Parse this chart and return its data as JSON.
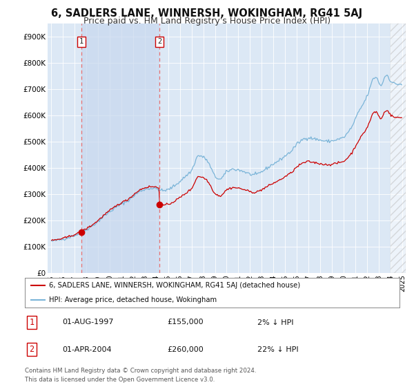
{
  "title": "6, SADLERS LANE, WINNERSH, WOKINGHAM, RG41 5AJ",
  "subtitle": "Price paid vs. HM Land Registry's House Price Index (HPI)",
  "background_color": "#ffffff",
  "plot_bg_color": "#dce8f5",
  "shade_color": "#c8d8ee",
  "legend_entries": [
    "6, SADLERS LANE, WINNERSH, WOKINGHAM, RG41 5AJ (detached house)",
    "HPI: Average price, detached house, Wokingham"
  ],
  "sale_year1": 1997.583,
  "sale_year2": 2004.25,
  "sale_price1": 155000,
  "sale_price2": 260000,
  "sale_labels": [
    "1",
    "2"
  ],
  "table_rows": [
    [
      "1",
      "01-AUG-1997",
      "£155,000",
      "2% ↓ HPI"
    ],
    [
      "2",
      "01-APR-2004",
      "£260,000",
      "22% ↓ HPI"
    ]
  ],
  "footer": "Contains HM Land Registry data © Crown copyright and database right 2024.\nThis data is licensed under the Open Government Licence v3.0.",
  "ylim": [
    0,
    950000
  ],
  "yticks": [
    0,
    100000,
    200000,
    300000,
    400000,
    500000,
    600000,
    700000,
    800000,
    900000
  ],
  "ytick_labels": [
    "£0",
    "£100K",
    "£200K",
    "£300K",
    "£400K",
    "£500K",
    "£600K",
    "£700K",
    "£800K",
    "£900K"
  ],
  "hpi_color": "#7ab4d8",
  "price_color": "#cc0000",
  "dashed_color": "#e87070",
  "grid_color": "#ffffff",
  "title_fontsize": 10.5,
  "subtitle_fontsize": 9,
  "hatch_start": 2024.0,
  "xlim_start": 1994.7,
  "xlim_end": 2025.3
}
